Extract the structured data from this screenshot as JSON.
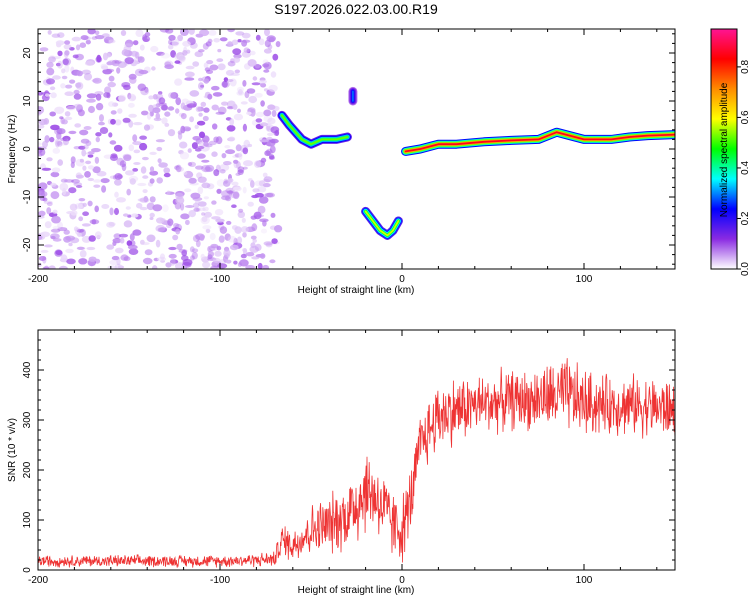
{
  "figure": {
    "title": "S197.2026.022.03.00.R19"
  },
  "chart_data": [
    {
      "type": "heatmap",
      "name": "spectrogram",
      "xlabel": "Height of straight line (km)",
      "ylabel": "Frequency (Hz)",
      "xlim": [
        -200,
        150
      ],
      "ylim": [
        -25,
        25
      ],
      "xticks": [
        -200,
        -100,
        0,
        100
      ],
      "xtick_labels": [
        "-200",
        "-100",
        "0",
        "100"
      ],
      "yticks": [
        -20,
        -10,
        0,
        10,
        20
      ],
      "ytick_labels": [
        "-20",
        "-10",
        "0",
        "10",
        "20"
      ],
      "colorbar": {
        "label": "Normalized spectral amplitude",
        "range": [
          0,
          0.95
        ],
        "ticks": [
          0.0,
          0.2,
          0.4,
          0.6,
          0.8
        ],
        "tick_labels": [
          "0.0",
          "0.2",
          "0.4",
          "0.6",
          "0.8"
        ],
        "colors": [
          "#ffffff",
          "#8a2be2",
          "#0000ff",
          "#00ffff",
          "#00ff00",
          "#ffff00",
          "#ff8c00",
          "#ff0000",
          "#ff1493"
        ]
      },
      "features": [
        {
          "name": "noise-field",
          "x_range": [
            -200,
            -68
          ],
          "y_range": [
            -25,
            25
          ],
          "amplitude": 0.1
        },
        {
          "name": "early-track",
          "points": [
            [
              -66,
              7
            ],
            [
              -62,
              5
            ],
            [
              -55,
              2
            ],
            [
              -50,
              1
            ],
            [
              -44,
              2
            ],
            [
              -36,
              2
            ],
            [
              -30,
              2.5
            ]
          ],
          "amplitude": 0.55
        },
        {
          "name": "upper-blob",
          "points": [
            [
              -27,
              12
            ],
            [
              -27,
              10
            ]
          ],
          "amplitude": 0.3
        },
        {
          "name": "lower-track",
          "points": [
            [
              -20,
              -13
            ],
            [
              -16,
              -15
            ],
            [
              -12,
              -17
            ],
            [
              -8,
              -18
            ],
            [
              -5,
              -17
            ],
            [
              -2,
              -15
            ]
          ],
          "amplitude": 0.6
        },
        {
          "name": "main-track",
          "points": [
            [
              2,
              -0.5
            ],
            [
              10,
              0
            ],
            [
              20,
              1
            ],
            [
              30,
              1
            ],
            [
              45,
              1.5
            ],
            [
              60,
              1.8
            ],
            [
              75,
              2
            ],
            [
              85,
              3.5
            ],
            [
              90,
              3
            ],
            [
              100,
              2
            ],
            [
              115,
              2
            ],
            [
              125,
              2.5
            ],
            [
              135,
              2.8
            ],
            [
              150,
              3
            ]
          ],
          "amplitude": 0.9
        }
      ]
    },
    {
      "type": "line",
      "name": "snr",
      "xlabel": "Height of straight line (km)",
      "ylabel": "SNR (10 * v/v)",
      "xlim": [
        -200,
        150
      ],
      "ylim": [
        0,
        480
      ],
      "xticks": [
        -200,
        -100,
        0,
        100
      ],
      "xtick_labels": [
        "-200",
        "-100",
        "0",
        "100"
      ],
      "yticks": [
        0,
        100,
        200,
        300,
        400
      ],
      "ytick_labels": [
        "0",
        "100",
        "200",
        "300",
        "400"
      ],
      "series": [
        {
          "name": "SNR",
          "color": "#ee3333",
          "envelope_x": [
            -200,
            -180,
            -160,
            -140,
            -120,
            -100,
            -80,
            -70,
            -66,
            -60,
            -50,
            -40,
            -30,
            -24,
            -20,
            -15,
            -10,
            -5,
            0,
            5,
            10,
            15,
            20,
            30,
            40,
            50,
            60,
            70,
            80,
            90,
            100,
            110,
            120,
            130,
            140,
            150
          ],
          "envelope_mean": [
            18,
            18,
            18,
            18,
            18,
            18,
            20,
            22,
            60,
            50,
            80,
            90,
            110,
            140,
            160,
            150,
            120,
            90,
            80,
            140,
            250,
            280,
            310,
            320,
            330,
            335,
            340,
            340,
            345,
            350,
            335,
            330,
            330,
            330,
            325,
            320
          ],
          "envelope_spread": [
            14,
            14,
            14,
            14,
            14,
            14,
            16,
            18,
            40,
            40,
            60,
            70,
            80,
            110,
            100,
            90,
            90,
            80,
            80,
            80,
            70,
            80,
            80,
            80,
            70,
            70,
            70,
            70,
            80,
            90,
            80,
            70,
            70,
            70,
            70,
            70
          ]
        }
      ]
    }
  ]
}
